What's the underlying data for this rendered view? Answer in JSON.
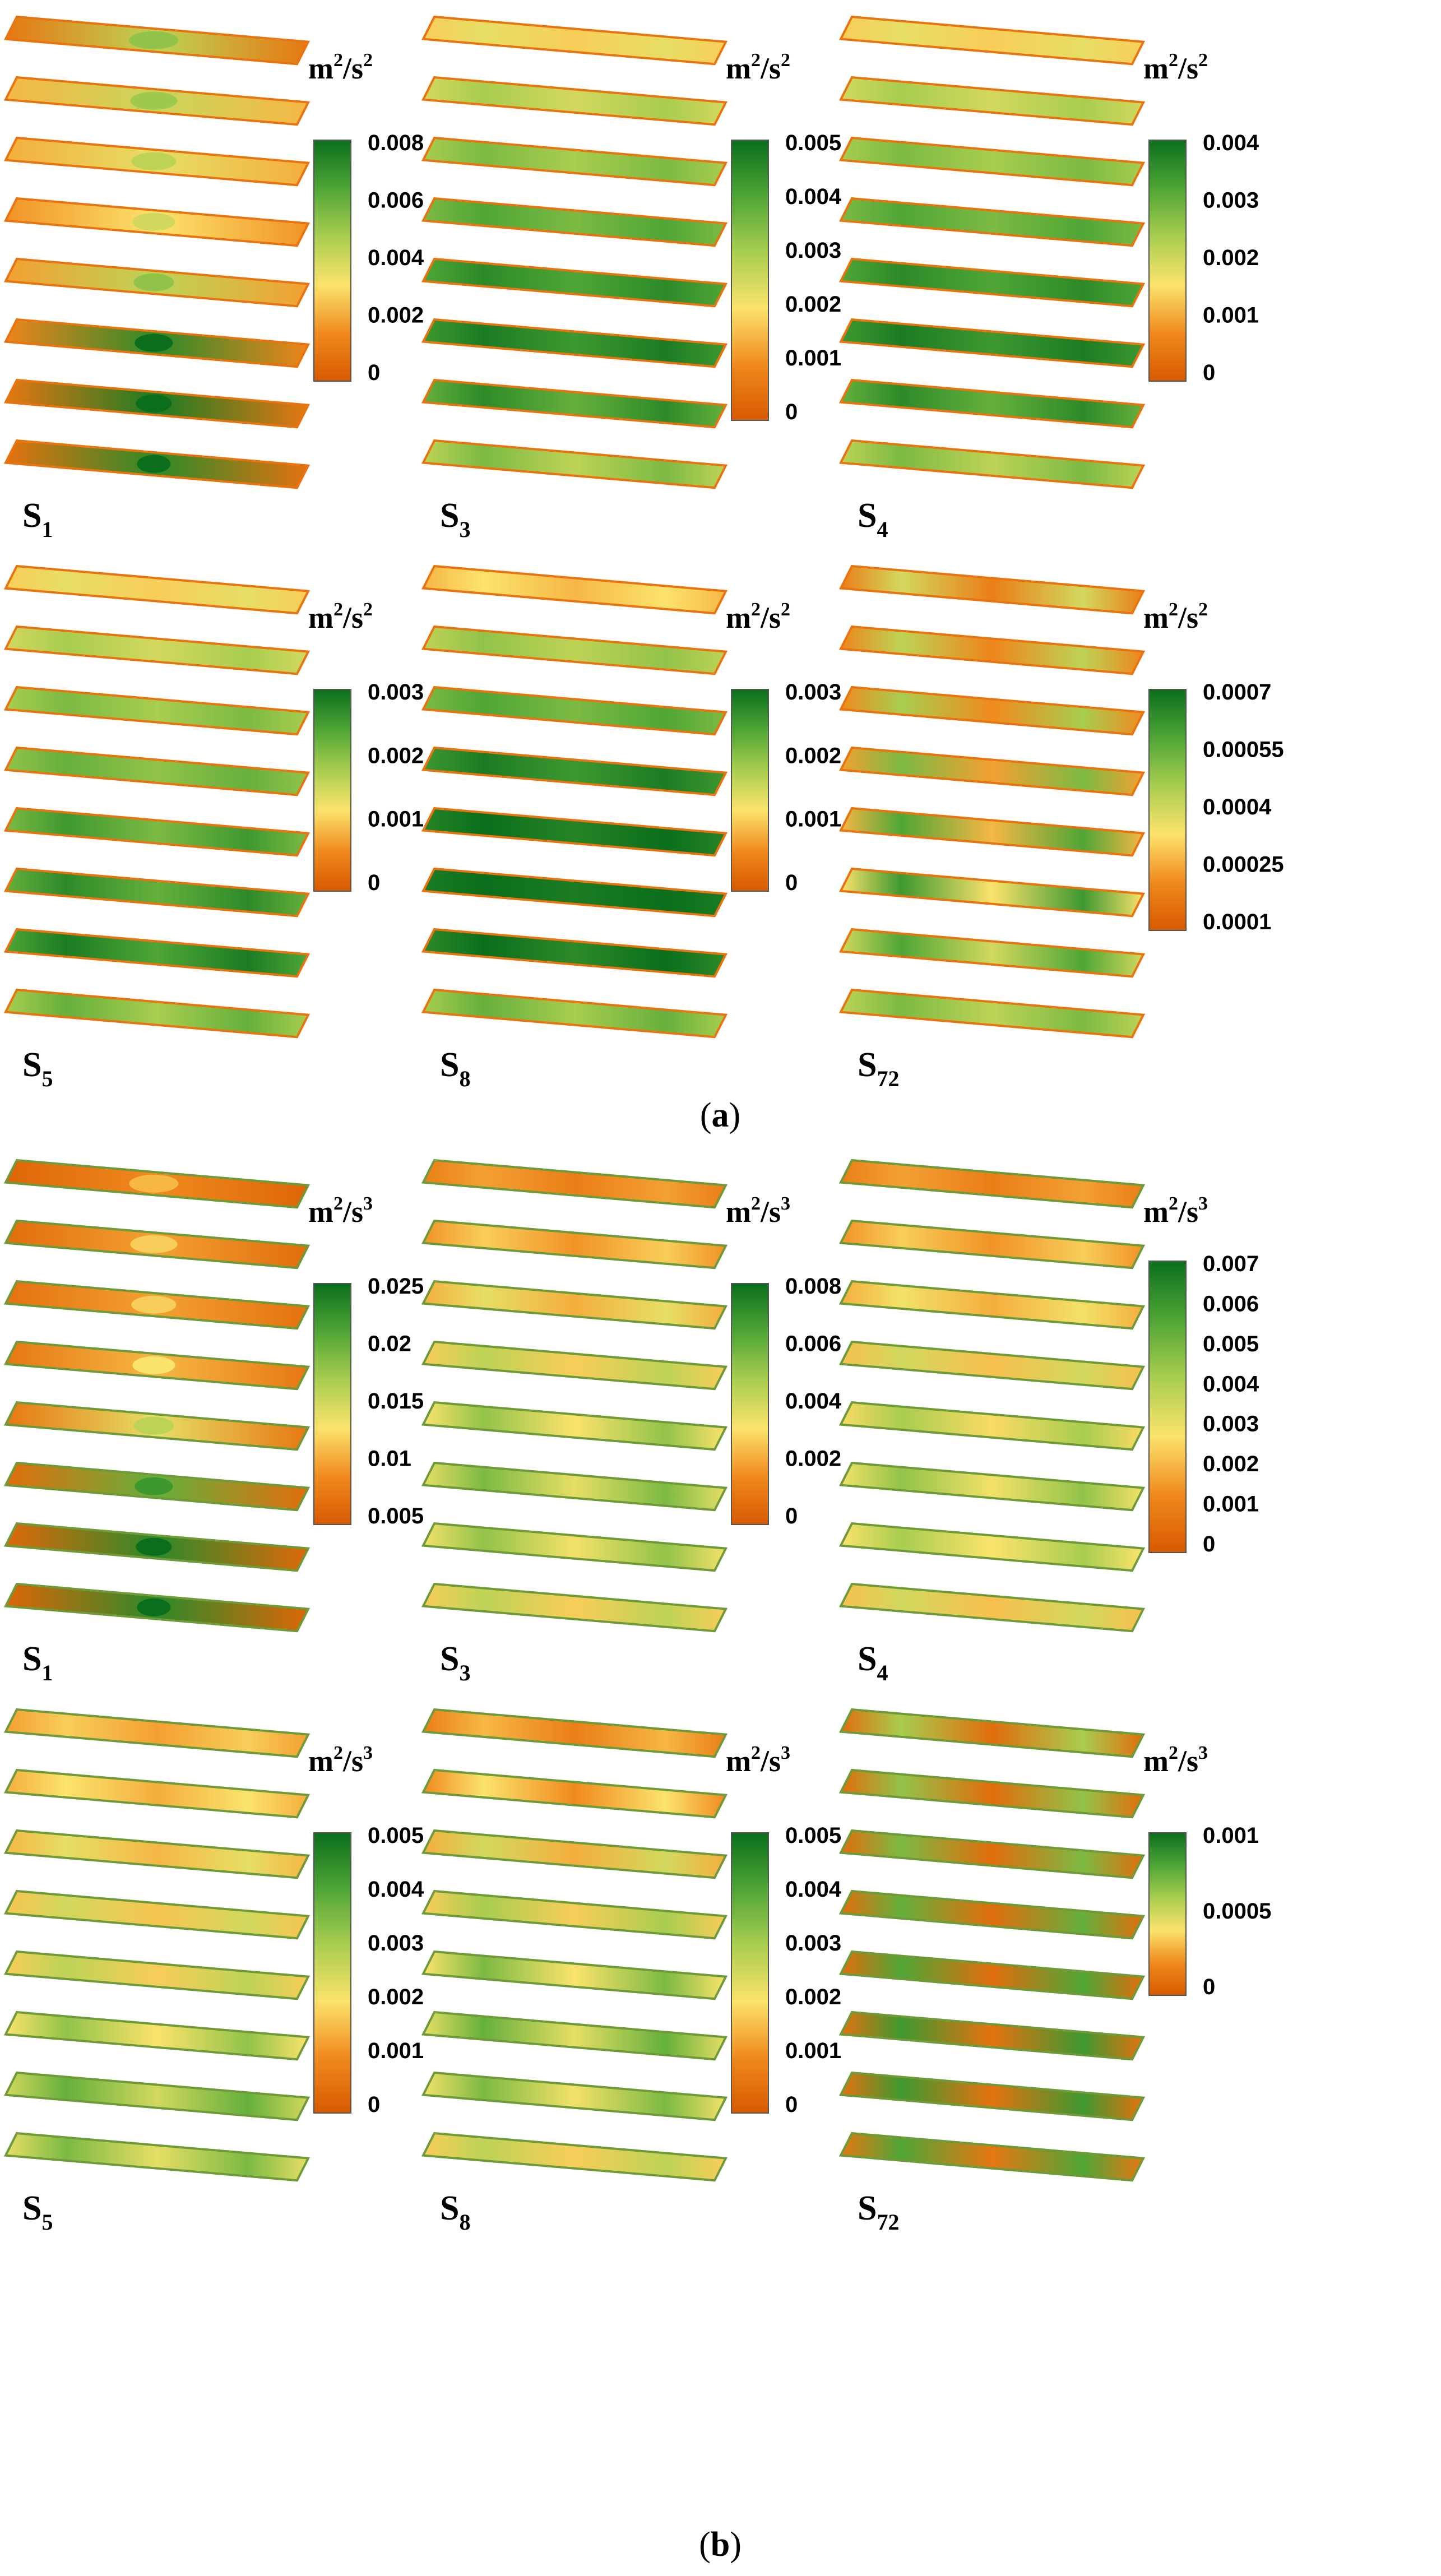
{
  "colormap": {
    "stops": [
      "#d75a00",
      "#f08a1e",
      "#fbe36c",
      "#a8cd4f",
      "#4fa636",
      "#0a6e1c"
    ],
    "plate_edge": "#e9740f",
    "plate_edge_b": "#6f9a3a"
  },
  "panels": [
    {
      "id": "a",
      "caption": "a",
      "unit_base": "m",
      "unit_exp1": "2",
      "unit_mid": "/s",
      "unit_exp2": "2",
      "cases": [
        {
          "label_base": "S",
          "label_sub": "1",
          "colorbar_ticks": [
            "0.008",
            "0.006",
            "0.004",
            "0.002",
            "0"
          ],
          "plate_levels": [
            0.12,
            0.3,
            0.28,
            0.22,
            0.25,
            0.18,
            0.12,
            0.1
          ],
          "hotspot_levels": [
            0.55,
            0.52,
            0.45,
            0.4,
            0.55,
            0.9,
            0.95,
            0.9
          ]
        },
        {
          "label_base": "S",
          "label_sub": "3",
          "colorbar_ticks": [
            "0.005",
            "0.004",
            "0.003",
            "0.002",
            "0.001",
            "0"
          ],
          "plate_levels": [
            0.35,
            0.5,
            0.6,
            0.7,
            0.8,
            0.85,
            0.75,
            0.55
          ],
          "hotspot_levels": [
            0.45,
            0.6,
            0.7,
            0.8,
            0.9,
            0.95,
            0.9,
            0.7
          ]
        },
        {
          "label_base": "S",
          "label_sub": "4",
          "colorbar_ticks": [
            "0.004",
            "0.003",
            "0.002",
            "0.001",
            "0"
          ],
          "plate_levels": [
            0.35,
            0.5,
            0.6,
            0.7,
            0.8,
            0.85,
            0.75,
            0.55
          ],
          "hotspot_levels": [
            0.45,
            0.6,
            0.7,
            0.8,
            0.9,
            0.95,
            0.9,
            0.7
          ]
        },
        {
          "label_base": "S",
          "label_sub": "5",
          "colorbar_ticks": [
            "0.003",
            "0.002",
            "0.001",
            "0"
          ],
          "plate_levels": [
            0.35,
            0.5,
            0.6,
            0.65,
            0.7,
            0.75,
            0.8,
            0.6
          ],
          "hotspot_levels": [
            0.45,
            0.6,
            0.7,
            0.75,
            0.85,
            0.9,
            0.95,
            0.75
          ]
        },
        {
          "label_base": "S",
          "label_sub": "8",
          "colorbar_ticks": [
            "0.003",
            "0.002",
            "0.001",
            "0"
          ],
          "plate_levels": [
            0.3,
            0.55,
            0.7,
            0.85,
            0.92,
            0.95,
            0.9,
            0.6
          ],
          "hotspot_levels": [
            0.4,
            0.65,
            0.8,
            0.95,
            1.0,
            1.0,
            1.0,
            0.75
          ]
        },
        {
          "label_base": "S",
          "label_sub": "72",
          "colorbar_ticks": [
            "0.0007",
            "0.00055",
            "0.0004",
            "0.00025",
            "0.0001"
          ],
          "plate_levels": [
            0.15,
            0.18,
            0.2,
            0.25,
            0.3,
            0.4,
            0.5,
            0.55
          ],
          "hotspot_levels": [
            0.5,
            0.55,
            0.6,
            0.7,
            0.8,
            0.85,
            0.8,
            0.7
          ]
        }
      ]
    },
    {
      "id": "b",
      "caption": "b",
      "unit_base": "m",
      "unit_exp1": "2",
      "unit_mid": "/s",
      "unit_exp2": "3",
      "cases": [
        {
          "label_base": "S",
          "label_sub": "1",
          "colorbar_ticks": [
            "0.025",
            "0.02",
            "0.015",
            "0.01",
            "0.005"
          ],
          "plate_levels": [
            0.05,
            0.08,
            0.1,
            0.12,
            0.12,
            0.08,
            0.06,
            0.05
          ],
          "hotspot_levels": [
            0.2,
            0.25,
            0.25,
            0.3,
            0.45,
            0.75,
            0.9,
            0.9
          ]
        },
        {
          "label_base": "S",
          "label_sub": "3",
          "colorbar_ticks": [
            "0.008",
            "0.006",
            "0.004",
            "0.002",
            "0"
          ],
          "plate_levels": [
            0.15,
            0.22,
            0.28,
            0.35,
            0.4,
            0.45,
            0.42,
            0.35
          ],
          "hotspot_levels": [
            0.25,
            0.35,
            0.45,
            0.55,
            0.65,
            0.7,
            0.65,
            0.55
          ]
        },
        {
          "label_base": "S",
          "label_sub": "4",
          "colorbar_ticks": [
            "0.007",
            "0.006",
            "0.005",
            "0.004",
            "0.003",
            "0.002",
            "0.001",
            "0"
          ],
          "plate_levels": [
            0.15,
            0.22,
            0.28,
            0.32,
            0.38,
            0.42,
            0.4,
            0.32
          ],
          "hotspot_levels": [
            0.25,
            0.35,
            0.42,
            0.5,
            0.6,
            0.65,
            0.6,
            0.5
          ]
        },
        {
          "label_base": "S",
          "label_sub": "5",
          "colorbar_ticks": [
            "0.005",
            "0.004",
            "0.003",
            "0.002",
            "0.001",
            "0"
          ],
          "plate_levels": [
            0.25,
            0.28,
            0.3,
            0.33,
            0.35,
            0.4,
            0.5,
            0.45
          ],
          "hotspot_levels": [
            0.35,
            0.4,
            0.45,
            0.5,
            0.55,
            0.65,
            0.75,
            0.7
          ]
        },
        {
          "label_base": "S",
          "label_sub": "8",
          "colorbar_ticks": [
            "0.005",
            "0.004",
            "0.003",
            "0.002",
            "0.001",
            "0"
          ],
          "plate_levels": [
            0.15,
            0.2,
            0.28,
            0.35,
            0.4,
            0.45,
            0.42,
            0.35
          ],
          "hotspot_levels": [
            0.3,
            0.4,
            0.5,
            0.6,
            0.7,
            0.75,
            0.7,
            0.55
          ]
        },
        {
          "label_base": "S",
          "label_sub": "72",
          "colorbar_ticks": [
            "0.001",
            "0.0005",
            "0"
          ],
          "plate_levels": [
            0.08,
            0.08,
            0.08,
            0.08,
            0.08,
            0.1,
            0.1,
            0.12
          ],
          "hotspot_levels": [
            0.6,
            0.65,
            0.7,
            0.75,
            0.8,
            0.85,
            0.85,
            0.8
          ]
        }
      ]
    }
  ]
}
